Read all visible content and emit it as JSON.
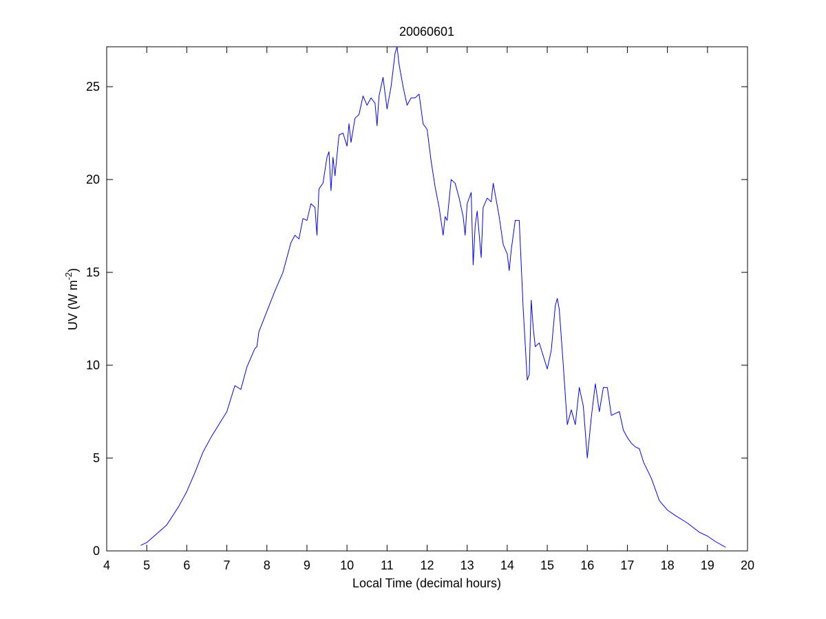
{
  "chart_data": {
    "type": "line",
    "title": "20060601",
    "xlabel": "Local Time (decimal hours)",
    "ylabel": [
      "UV (W m",
      "-2",
      ")"
    ],
    "color": "#0000ff",
    "xlim": [
      4,
      20
    ],
    "xticks": [
      4,
      5,
      6,
      7,
      8,
      9,
      10,
      11,
      12,
      13,
      14,
      15,
      16,
      17,
      18,
      19,
      20
    ],
    "ylim": [
      0,
      27.15
    ],
    "yticks": [
      0,
      5,
      10,
      15,
      20,
      25
    ],
    "grid": false,
    "x": [
      4.85,
      5.0,
      5.5,
      5.8,
      6.0,
      6.2,
      6.4,
      6.6,
      6.8,
      7.0,
      7.2,
      7.35,
      7.5,
      7.7,
      7.75,
      7.8,
      8.0,
      8.2,
      8.3,
      8.4,
      8.6,
      8.7,
      8.8,
      8.9,
      9.0,
      9.1,
      9.2,
      9.25,
      9.3,
      9.4,
      9.5,
      9.55,
      9.6,
      9.65,
      9.7,
      9.8,
      9.9,
      10.0,
      10.05,
      10.1,
      10.2,
      10.3,
      10.4,
      10.5,
      10.6,
      10.7,
      10.75,
      10.8,
      10.9,
      11.0,
      11.1,
      11.2,
      11.25,
      11.3,
      11.4,
      11.5,
      11.6,
      11.7,
      11.8,
      11.9,
      12.0,
      12.1,
      12.2,
      12.3,
      12.4,
      12.45,
      12.5,
      12.6,
      12.7,
      12.8,
      12.9,
      12.95,
      13.0,
      13.1,
      13.15,
      13.2,
      13.25,
      13.35,
      13.4,
      13.5,
      13.6,
      13.65,
      13.7,
      13.8,
      13.9,
      14.0,
      14.05,
      14.1,
      14.2,
      14.3,
      14.4,
      14.5,
      14.55,
      14.6,
      14.65,
      14.7,
      14.8,
      14.9,
      15.0,
      15.1,
      15.2,
      15.25,
      15.3,
      15.4,
      15.5,
      15.6,
      15.7,
      15.8,
      15.9,
      16.0,
      16.1,
      16.2,
      16.3,
      16.4,
      16.5,
      16.6,
      16.7,
      16.8,
      16.9,
      17.0,
      17.1,
      17.2,
      17.3,
      17.4,
      17.6,
      17.8,
      18.0,
      18.2,
      18.5,
      18.8,
      19.0,
      19.2,
      19.45
    ],
    "values": [
      0.3,
      0.45,
      1.4,
      2.4,
      3.2,
      4.2,
      5.3,
      6.1,
      6.8,
      7.5,
      8.9,
      8.7,
      9.9,
      10.9,
      11.0,
      11.8,
      12.9,
      14.0,
      14.5,
      15.0,
      16.6,
      17.0,
      16.8,
      17.9,
      17.8,
      18.7,
      18.5,
      17.0,
      19.5,
      19.8,
      21.2,
      21.5,
      19.4,
      21.2,
      20.2,
      22.4,
      22.5,
      21.8,
      23.0,
      22.0,
      23.3,
      23.5,
      24.5,
      24.0,
      24.4,
      24.1,
      22.9,
      24.5,
      25.5,
      23.8,
      25.0,
      26.8,
      27.15,
      26.2,
      25.0,
      24.0,
      24.4,
      24.4,
      24.6,
      23.0,
      22.7,
      21.0,
      19.6,
      18.5,
      17.0,
      18.0,
      17.8,
      20.0,
      19.8,
      19.0,
      18.0,
      17.0,
      18.7,
      19.3,
      15.4,
      17.5,
      18.3,
      15.8,
      18.5,
      19.0,
      18.8,
      19.8,
      19.2,
      18.0,
      16.5,
      16.0,
      15.1,
      16.2,
      17.8,
      17.8,
      13.0,
      9.2,
      9.5,
      13.5,
      12.0,
      11.0,
      11.2,
      10.5,
      9.8,
      10.8,
      13.2,
      13.6,
      13.0,
      10.0,
      6.8,
      7.6,
      6.8,
      8.8,
      7.8,
      5.0,
      7.2,
      9.0,
      7.5,
      8.8,
      8.8,
      7.3,
      7.4,
      7.5,
      6.5,
      6.1,
      5.8,
      5.6,
      5.5,
      4.8,
      3.9,
      2.7,
      2.2,
      1.9,
      1.5,
      1.0,
      0.8,
      0.5,
      0.2
    ]
  }
}
